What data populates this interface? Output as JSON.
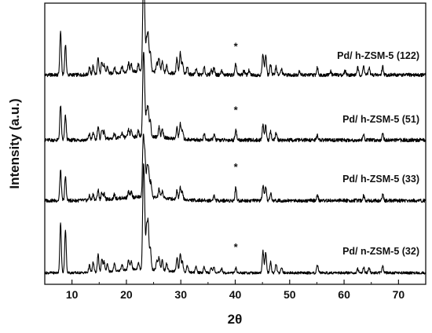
{
  "chart_data": {
    "type": "line",
    "xlabel": "2θ",
    "ylabel": "Intensity (a.u.)",
    "xlim": [
      5,
      75
    ],
    "xticks": [
      10,
      20,
      30,
      40,
      50,
      60,
      70
    ],
    "y_ticks_shown": false,
    "line_color": "#000000",
    "peak_marker_symbol": "*",
    "peak_marker_x": 40.1,
    "series": [
      {
        "name": "Pd/ h-ZSM-5 (122)",
        "baseline": 0.05,
        "noise": 0.025,
        "x": [
          7.9,
          8.8,
          13.2,
          13.9,
          14.8,
          15.5,
          15.9,
          16.5,
          17.8,
          19.2,
          20.4,
          20.9,
          22.2,
          23.1,
          23.3,
          23.7,
          24.0,
          24.4,
          25.6,
          26.0,
          26.6,
          27.4,
          29.3,
          29.9,
          30.3,
          31.2,
          32.8,
          34.3,
          35.6,
          36.1,
          37.5,
          40.1,
          41.6,
          42.5,
          45.1,
          45.6,
          46.5,
          47.5,
          48.5,
          51.8,
          55.1,
          57.5,
          60.2,
          62.5,
          63.6,
          64.6,
          67.1
        ],
        "values": [
          0.6,
          0.42,
          0.1,
          0.12,
          0.22,
          0.18,
          0.12,
          0.1,
          0.08,
          0.08,
          0.12,
          0.1,
          0.1,
          1.0,
          0.75,
          0.4,
          0.5,
          0.28,
          0.12,
          0.2,
          0.15,
          0.1,
          0.22,
          0.3,
          0.15,
          0.1,
          0.08,
          0.1,
          0.07,
          0.1,
          0.06,
          0.15,
          0.06,
          0.06,
          0.3,
          0.28,
          0.15,
          0.12,
          0.08,
          0.06,
          0.1,
          0.05,
          0.06,
          0.1,
          0.12,
          0.1,
          0.12
        ]
      },
      {
        "name": "Pd/ h-ZSM-5 (51)",
        "baseline": 0.05,
        "noise": 0.025,
        "x": [
          7.9,
          8.8,
          13.2,
          13.9,
          14.8,
          15.5,
          15.9,
          17.8,
          19.2,
          20.4,
          20.9,
          22.2,
          23.1,
          23.3,
          23.7,
          24.0,
          24.4,
          26.0,
          26.6,
          29.3,
          29.9,
          30.3,
          34.3,
          36.1,
          40.1,
          45.1,
          45.6,
          46.5,
          47.5,
          55.1,
          63.6,
          67.1
        ],
        "values": [
          0.48,
          0.34,
          0.08,
          0.1,
          0.18,
          0.14,
          0.1,
          0.07,
          0.07,
          0.1,
          0.09,
          0.08,
          0.88,
          0.6,
          0.32,
          0.4,
          0.22,
          0.15,
          0.12,
          0.15,
          0.22,
          0.12,
          0.08,
          0.08,
          0.15,
          0.22,
          0.2,
          0.12,
          0.1,
          0.07,
          0.08,
          0.1
        ]
      },
      {
        "name": "Pd/ h-ZSM-5 (33)",
        "baseline": 0.05,
        "noise": 0.025,
        "x": [
          7.9,
          8.8,
          13.2,
          13.9,
          14.8,
          15.5,
          15.9,
          17.8,
          20.4,
          20.9,
          23.1,
          23.4,
          23.8,
          24.1,
          24.5,
          26.0,
          26.6,
          29.3,
          29.9,
          30.3,
          36.1,
          40.1,
          45.1,
          45.6,
          46.5,
          55.1,
          63.6,
          67.1
        ],
        "values": [
          0.42,
          0.33,
          0.06,
          0.08,
          0.14,
          0.1,
          0.08,
          0.06,
          0.08,
          0.07,
          0.82,
          0.55,
          0.4,
          0.35,
          0.22,
          0.12,
          0.1,
          0.12,
          0.18,
          0.1,
          0.07,
          0.18,
          0.2,
          0.18,
          0.1,
          0.07,
          0.07,
          0.08
        ]
      },
      {
        "name": "Pd/ n-ZSM-5 (32)",
        "baseline": 0.05,
        "noise": 0.018,
        "x": [
          7.9,
          8.8,
          13.2,
          13.9,
          14.8,
          15.5,
          15.9,
          16.5,
          17.8,
          19.2,
          20.4,
          20.9,
          22.2,
          23.1,
          23.3,
          23.7,
          24.0,
          24.4,
          25.6,
          26.0,
          26.6,
          27.4,
          29.3,
          29.9,
          30.3,
          31.2,
          32.8,
          34.3,
          35.6,
          36.1,
          37.5,
          40.1,
          45.1,
          45.6,
          46.5,
          47.5,
          48.5,
          55.1,
          62.5,
          63.6,
          64.6,
          67.1
        ],
        "values": [
          0.68,
          0.6,
          0.1,
          0.14,
          0.24,
          0.18,
          0.14,
          0.1,
          0.1,
          0.08,
          0.14,
          0.12,
          0.1,
          1.08,
          0.8,
          0.55,
          0.62,
          0.3,
          0.12,
          0.18,
          0.14,
          0.1,
          0.2,
          0.26,
          0.14,
          0.1,
          0.08,
          0.08,
          0.07,
          0.08,
          0.06,
          0.07,
          0.3,
          0.28,
          0.15,
          0.12,
          0.08,
          0.1,
          0.06,
          0.08,
          0.07,
          0.09
        ]
      }
    ]
  }
}
